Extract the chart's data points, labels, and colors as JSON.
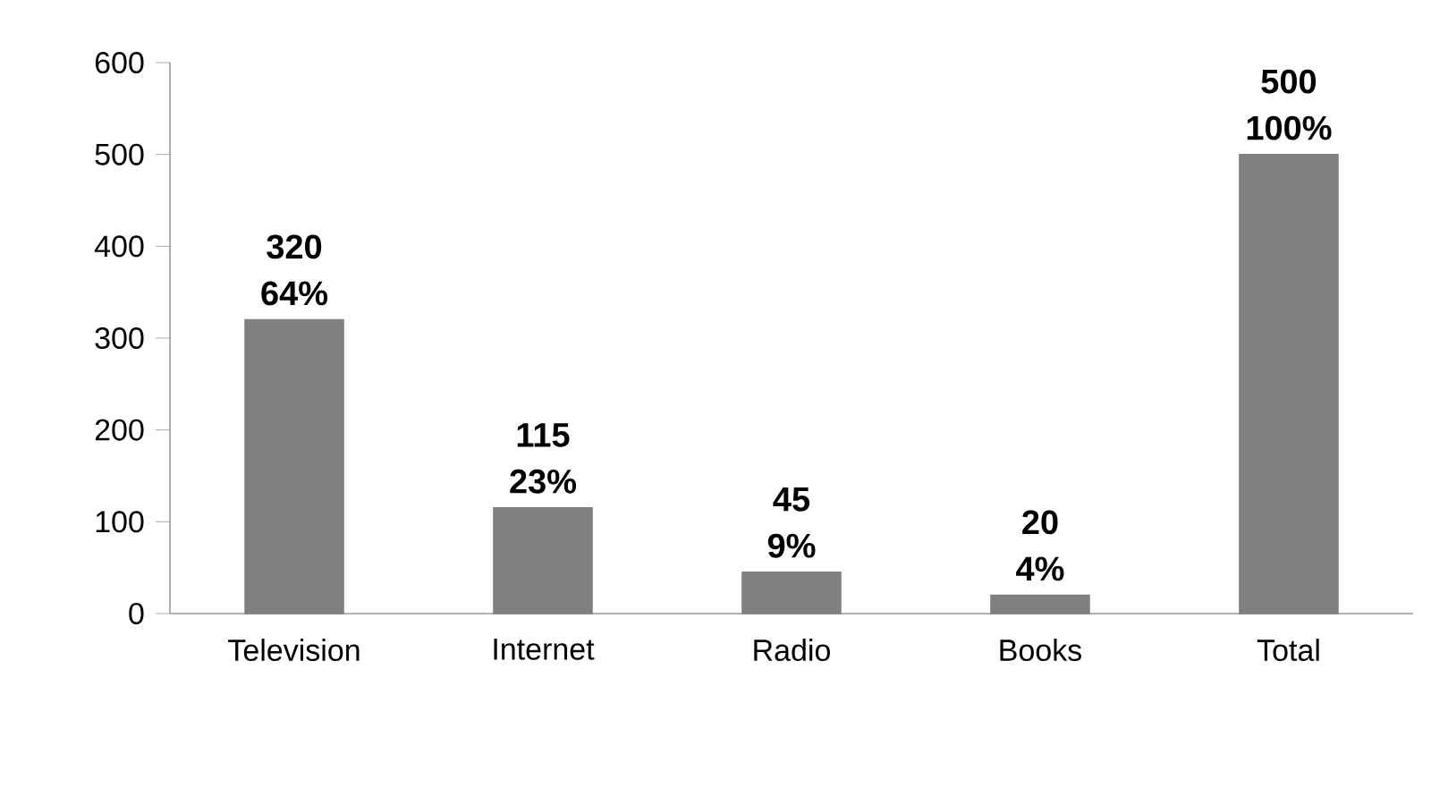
{
  "chart_data": {
    "type": "bar",
    "categories": [
      "Television",
      "Internet",
      "Radio",
      "Books",
      "Total"
    ],
    "series": [
      {
        "color": "#808080",
        "values": [
          320,
          115,
          45,
          20,
          500
        ],
        "value_labels": [
          "320",
          "115",
          "45",
          "20",
          "500"
        ]
      }
    ],
    "annotations": [
      {
        "text": "64%",
        "x": "Television",
        "y": 320
      },
      {
        "text": "23%",
        "x": "Internet",
        "y": 115
      },
      {
        "text": "9%",
        "x": "Radio",
        "y": 45
      },
      {
        "text": "4%",
        "x": "Books",
        "y": 20
      },
      {
        "text": "100%",
        "x": "Total",
        "y": 500
      }
    ],
    "ylim": [
      0,
      600
    ],
    "yticks": [
      0,
      100,
      200,
      300,
      400,
      500,
      600
    ]
  }
}
